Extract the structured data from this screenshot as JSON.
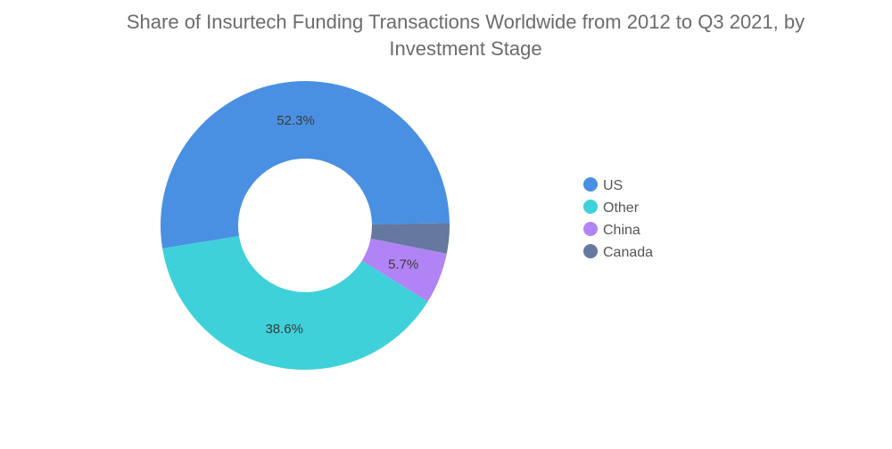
{
  "chart_data": {
    "type": "pie",
    "variant": "donut",
    "title": "Share of Insurtech Funding Transactions Worldwide from 2012 to Q3 2021, by Investment Stage",
    "title_lines": [
      "Share of Insurtech Funding Transactions Worldwide from 2012 to Q3 2021, by",
      "Investment Stage"
    ],
    "categories": [
      "US",
      "Other",
      "China",
      "Canada"
    ],
    "values": [
      52.3,
      38.6,
      5.7,
      3.4
    ],
    "labels": [
      "52.3%",
      "38.6%",
      "5.7%",
      ""
    ],
    "colors": [
      "#4a90e2",
      "#3fd1d9",
      "#b184f5",
      "#6478a0"
    ],
    "legend_position": "right"
  }
}
